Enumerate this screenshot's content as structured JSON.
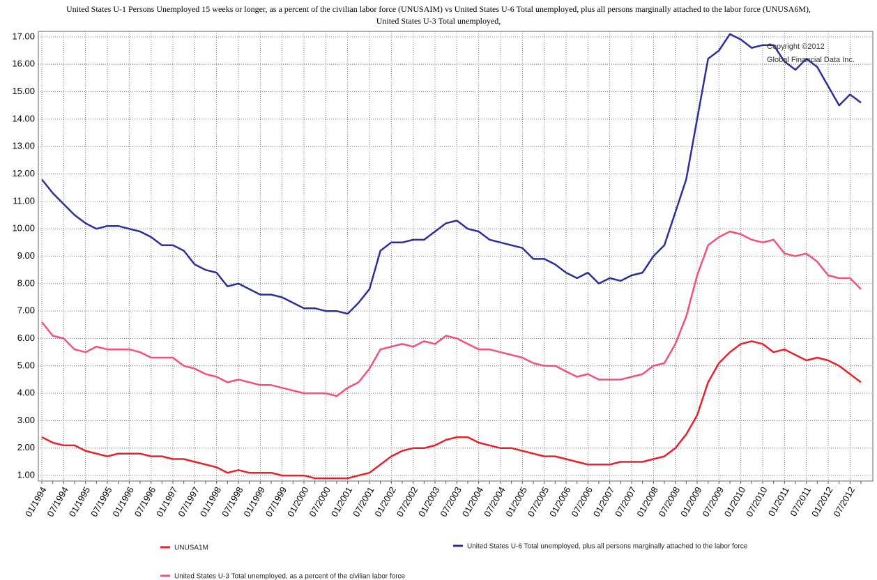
{
  "chart_data": {
    "type": "line",
    "title": [
      "United States U-1 Persons Unemployed 15 weeks or longer, as a percent of the civilian labor force (UNUSAIM) vs United States U-6 Total unemployed, plus all persons marginally attached to the labor force (UNUSA6M),",
      "United States U-3 Total unemployed,"
    ],
    "annotations": [
      "Copyright ©2012",
      "Global Financial Data Inc."
    ],
    "categories": [
      "01/1994",
      null,
      "07/1994",
      null,
      "01/1995",
      null,
      "07/1995",
      null,
      "01/1996",
      null,
      "07/1996",
      null,
      "01/1997",
      null,
      "07/1997",
      null,
      "01/1998",
      null,
      "07/1998",
      null,
      "01/1999",
      null,
      "07/1999",
      null,
      "01/2000",
      null,
      "07/2000",
      null,
      "01/2001",
      null,
      "07/2001",
      null,
      "01/2002",
      null,
      "07/2002",
      null,
      "01/2003",
      null,
      "07/2003",
      null,
      "01/2004",
      null,
      "07/2004",
      null,
      "01/2005",
      null,
      "07/2005",
      null,
      "01/2006",
      null,
      "07/2006",
      null,
      "01/2007",
      null,
      "07/2007",
      null,
      "01/2008",
      null,
      "07/2008",
      null,
      "01/2009",
      null,
      "07/2009",
      null,
      "01/2010",
      null,
      "07/2010",
      null,
      "01/2011",
      null,
      "07/2011",
      null,
      "01/2012",
      null,
      "07/2012",
      null
    ],
    "series": [
      {
        "name": "UNUSA1M",
        "color": "#e8202a",
        "values": [
          2.4,
          2.2,
          2.1,
          2.1,
          1.9,
          1.8,
          1.7,
          1.8,
          1.8,
          1.8,
          1.7,
          1.7,
          1.6,
          1.6,
          1.5,
          1.4,
          1.3,
          1.1,
          1.2,
          1.1,
          1.1,
          1.1,
          1.0,
          1.0,
          1.0,
          0.9,
          0.9,
          0.9,
          0.9,
          1.0,
          1.1,
          1.4,
          1.7,
          1.9,
          2.0,
          2.0,
          2.1,
          2.3,
          2.4,
          2.4,
          2.2,
          2.1,
          2.0,
          2.0,
          1.9,
          1.8,
          1.7,
          1.7,
          1.6,
          1.5,
          1.4,
          1.4,
          1.4,
          1.5,
          1.5,
          1.5,
          1.6,
          1.7,
          2.0,
          2.5,
          3.2,
          4.4,
          5.1,
          5.5,
          5.8,
          5.9,
          5.8,
          5.5,
          5.6,
          5.4,
          5.2,
          5.3,
          5.2,
          5.0,
          4.7,
          4.4
        ]
      },
      {
        "name": "United States U-6 Total unemployed, plus all persons marginally attached to the labor force",
        "color": "#2b2f9e",
        "values": [
          11.8,
          11.3,
          10.9,
          10.5,
          10.2,
          10.0,
          10.1,
          10.1,
          10.0,
          9.9,
          9.7,
          9.4,
          9.4,
          9.2,
          8.7,
          8.5,
          8.4,
          7.9,
          8.0,
          7.8,
          7.6,
          7.6,
          7.5,
          7.3,
          7.1,
          7.1,
          7.0,
          7.0,
          6.9,
          7.3,
          7.8,
          9.2,
          9.5,
          9.5,
          9.6,
          9.6,
          9.9,
          10.2,
          10.3,
          10.0,
          9.9,
          9.6,
          9.5,
          9.4,
          9.3,
          8.9,
          8.9,
          8.7,
          8.4,
          8.2,
          8.4,
          8.0,
          8.2,
          8.1,
          8.3,
          8.4,
          9.0,
          9.4,
          10.6,
          11.8,
          14.0,
          16.2,
          16.5,
          17.1,
          16.9,
          16.6,
          16.7,
          16.7,
          16.1,
          15.8,
          16.2,
          15.9,
          15.2,
          14.5,
          14.9,
          14.6
        ]
      },
      {
        "name": "United States U-3 Total unemployed, as a percent of the civilian labor force",
        "color": "#f5507a",
        "values": [
          6.6,
          6.1,
          6.0,
          5.6,
          5.5,
          5.7,
          5.6,
          5.6,
          5.6,
          5.5,
          5.3,
          5.3,
          5.3,
          5.0,
          4.9,
          4.7,
          4.6,
          4.4,
          4.5,
          4.4,
          4.3,
          4.3,
          4.2,
          4.1,
          4.0,
          4.0,
          4.0,
          3.9,
          4.2,
          4.4,
          4.9,
          5.6,
          5.7,
          5.8,
          5.7,
          5.9,
          5.8,
          6.1,
          6.0,
          5.8,
          5.6,
          5.6,
          5.5,
          5.4,
          5.3,
          5.1,
          5.0,
          5.0,
          4.8,
          4.6,
          4.7,
          4.5,
          4.5,
          4.5,
          4.6,
          4.7,
          5.0,
          5.1,
          5.8,
          6.8,
          8.3,
          9.4,
          9.7,
          9.9,
          9.8,
          9.6,
          9.5,
          9.6,
          9.1,
          9.0,
          9.1,
          8.8,
          8.3,
          8.2,
          8.2,
          7.8
        ]
      }
    ],
    "ylim": [
      0.8,
      17.2
    ],
    "yticks": [
      {
        "value": 1,
        "label": "1.00"
      },
      {
        "value": 2,
        "label": "2.00"
      },
      {
        "value": 3,
        "label": "3.00"
      },
      {
        "value": 4,
        "label": "4.00"
      },
      {
        "value": 5,
        "label": "5.00"
      },
      {
        "value": 6,
        "label": "6.00"
      },
      {
        "value": 7,
        "label": "7.00"
      },
      {
        "value": 8,
        "label": "8.00"
      },
      {
        "value": 9,
        "label": "9.00"
      },
      {
        "value": 10,
        "label": "10.00"
      },
      {
        "value": 11,
        "label": "11.00"
      },
      {
        "value": 12,
        "label": "12.00"
      },
      {
        "value": 13,
        "label": "13.00"
      },
      {
        "value": 14,
        "label": "14.00"
      },
      {
        "value": 15,
        "label": "15.00"
      },
      {
        "value": 16,
        "label": "16.00"
      },
      {
        "value": 17,
        "label": "17.00"
      }
    ],
    "grid": true
  }
}
